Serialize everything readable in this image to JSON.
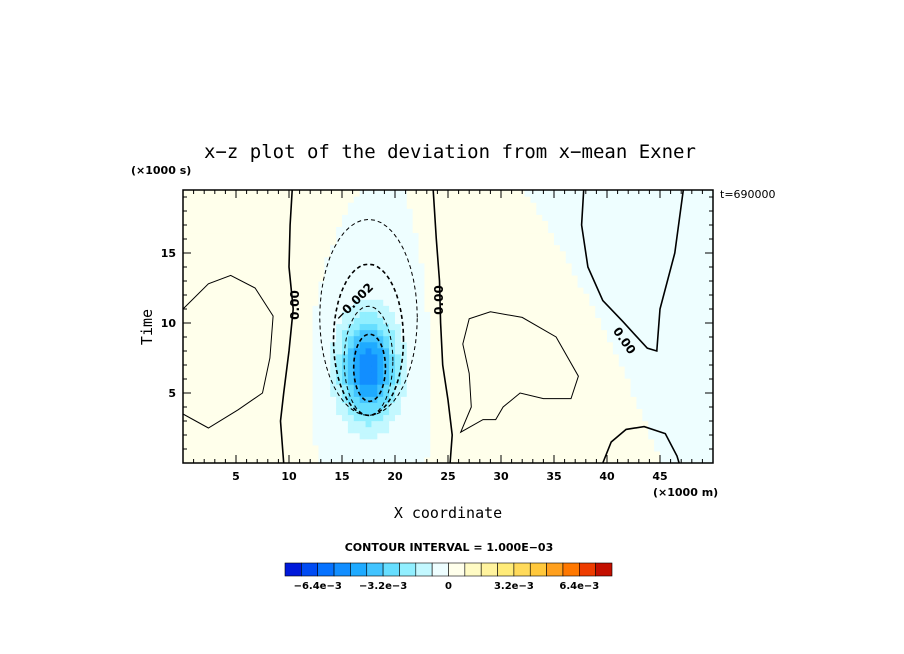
{
  "chart_data": {
    "type": "heatmap",
    "title": "x−z plot of the deviation from x−mean Exner",
    "xlabel": "X coordinate",
    "ylabel": "Time",
    "x_unit": "(×1000 m)",
    "y_unit": "(×1000 s)",
    "time_stamp": "t=690000",
    "xlim": [
      0,
      50
    ],
    "ylim": [
      0,
      19.5
    ],
    "x_ticks": [
      "5",
      "10",
      "15",
      "20",
      "25",
      "30",
      "35",
      "40",
      "45"
    ],
    "y_ticks": [
      "5",
      "10",
      "15"
    ],
    "contour_interval_text": "CONTOUR INTERVAL = 1.000E−03",
    "contour_labels": [
      "0.00",
      "−0.002",
      "0.00",
      "0.00"
    ],
    "colorbar": {
      "min": -0.008,
      "max": 0.008,
      "tick_labels": [
        "−6.4e−3",
        "−3.2e−3",
        "0",
        "3.2e−3",
        "6.4e−3"
      ],
      "tick_values": [
        -0.0064,
        -0.0032,
        0,
        0.0032,
        0.0064
      ]
    },
    "field_features": [
      {
        "kind": "min",
        "x": 17.5,
        "y": 6.8,
        "amp": -0.0055,
        "sx": 2.6,
        "sy": 3.6
      },
      {
        "kind": "max",
        "x": 5.0,
        "y": 8.0,
        "amp": 0.0007,
        "sx": 4.5,
        "sy": 6.0
      },
      {
        "kind": "max",
        "x": 32.0,
        "y": 7.5,
        "amp": 0.0007,
        "sx": 5.0,
        "sy": 4.5
      },
      {
        "kind": "min",
        "x": 45.0,
        "y": 15.5,
        "amp": -0.0007,
        "sx": 5.0,
        "sy": 5.0
      }
    ]
  }
}
